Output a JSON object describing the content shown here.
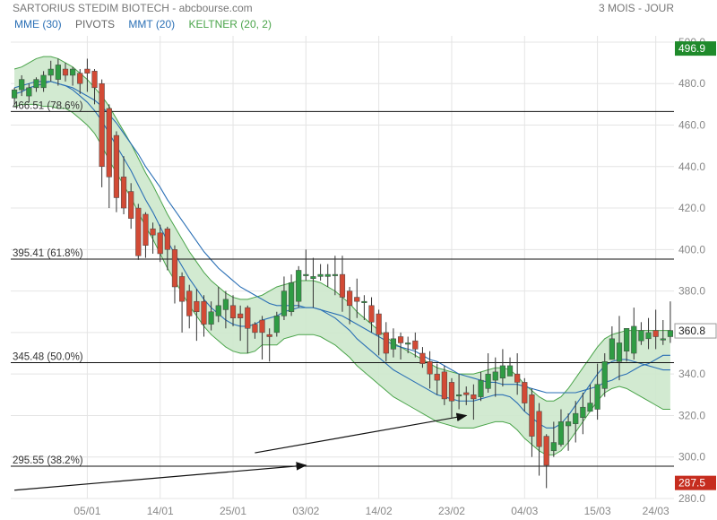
{
  "header": {
    "title": "SARTORIUS STEDIM BIOTECH - abcbourse.com",
    "period": "3 MOIS - JOUR"
  },
  "legend": [
    {
      "label": "MME (30)",
      "color": "#2a6fb5"
    },
    {
      "label": "PIVOTS",
      "color": "#666666"
    },
    {
      "label": "MMT (20)",
      "color": "#2a6fb5"
    },
    {
      "label": "KELTNER (20, 2)",
      "color": "#4aa44a"
    }
  ],
  "chart_data": {
    "type": "candlestick",
    "ylim": [
      280,
      503
    ],
    "y_ticks": [
      280,
      300,
      320,
      340,
      360,
      380,
      400,
      420,
      440,
      460,
      480,
      500
    ],
    "y_tick_labels": [
      "280.0",
      "300.0",
      "320.0",
      "340.0",
      "360.0",
      "380.0",
      "400.0",
      "420.0",
      "440.0",
      "460.0",
      "480.0",
      "500.0"
    ],
    "x_ticks": [
      {
        "index": 10,
        "label": "05/01"
      },
      {
        "index": 20,
        "label": "14/01"
      },
      {
        "index": 30,
        "label": "25/01"
      },
      {
        "index": 40,
        "label": "03/02"
      },
      {
        "index": 50,
        "label": "14/02"
      },
      {
        "index": 60,
        "label": "23/02"
      },
      {
        "index": 70,
        "label": "04/03"
      },
      {
        "index": 80,
        "label": "15/03"
      },
      {
        "index": 88,
        "label": "24/03"
      }
    ],
    "candles": [
      [
        473,
        477,
        470,
        478
      ],
      [
        477,
        482,
        474,
        484
      ],
      [
        474,
        478,
        471,
        480
      ],
      [
        478,
        482,
        476,
        483
      ],
      [
        478,
        484,
        476,
        486
      ],
      [
        484,
        487,
        481,
        491
      ],
      [
        482,
        489,
        479,
        492
      ],
      [
        487,
        484,
        481,
        490
      ],
      [
        484,
        487,
        479,
        488
      ],
      [
        485,
        480,
        475,
        487
      ],
      [
        487,
        485,
        476,
        492
      ],
      [
        486,
        478,
        470,
        487
      ],
      [
        480,
        440,
        430,
        482
      ],
      [
        468,
        435,
        420,
        470
      ],
      [
        455,
        425,
        418,
        457
      ],
      [
        435,
        420,
        417,
        445
      ],
      [
        428,
        415,
        410,
        432
      ],
      [
        420,
        397,
        395,
        422
      ],
      [
        417,
        402,
        396,
        418
      ],
      [
        410,
        407,
        398,
        413
      ],
      [
        408,
        398,
        394,
        412
      ],
      [
        410,
        400,
        390,
        411
      ],
      [
        400,
        382,
        374,
        402
      ],
      [
        387,
        375,
        360,
        389
      ],
      [
        380,
        368,
        362,
        383
      ],
      [
        375,
        370,
        356,
        381
      ],
      [
        375,
        364,
        358,
        378
      ],
      [
        364,
        370,
        361,
        375
      ],
      [
        368,
        373,
        365,
        382
      ],
      [
        371,
        376,
        362,
        380
      ],
      [
        373,
        367,
        363,
        378
      ],
      [
        369,
        367,
        356,
        373
      ],
      [
        372,
        362,
        350,
        373
      ],
      [
        364,
        360,
        357,
        365
      ],
      [
        366,
        360,
        347,
        368
      ],
      [
        359,
        358,
        346,
        362
      ],
      [
        360,
        368,
        358,
        370
      ],
      [
        368,
        380,
        366,
        387
      ],
      [
        370,
        384,
        368,
        388
      ],
      [
        375,
        390,
        372,
        392
      ],
      [
        388,
        388,
        385,
        400
      ],
      [
        386,
        387,
        372,
        396
      ],
      [
        387,
        388,
        385,
        393
      ],
      [
        387,
        388,
        382,
        393
      ],
      [
        388,
        388,
        378,
        397
      ],
      [
        388,
        377,
        370,
        397
      ],
      [
        380,
        373,
        364,
        382
      ],
      [
        377,
        375,
        367,
        386
      ],
      [
        375,
        375,
        366,
        378
      ],
      [
        373,
        365,
        360,
        377
      ],
      [
        369,
        359,
        349,
        371
      ],
      [
        360,
        350,
        346,
        365
      ],
      [
        352,
        357,
        348,
        362
      ],
      [
        358,
        355,
        347,
        360
      ],
      [
        355,
        355,
        350,
        358
      ],
      [
        356,
        352,
        348,
        360
      ],
      [
        350,
        345,
        343,
        353
      ],
      [
        346,
        340,
        333,
        351
      ],
      [
        340,
        337,
        330,
        345
      ],
      [
        341,
        328,
        325,
        344
      ],
      [
        336,
        327,
        319,
        338
      ],
      [
        330,
        330,
        323,
        340
      ],
      [
        331,
        330,
        325,
        334
      ],
      [
        330,
        328,
        318,
        335
      ],
      [
        329,
        337,
        327,
        341
      ],
      [
        333,
        340,
        331,
        350
      ],
      [
        337,
        341,
        329,
        348
      ],
      [
        338,
        344,
        334,
        352
      ],
      [
        339,
        344,
        340,
        348
      ],
      [
        340,
        336,
        330,
        350
      ],
      [
        336,
        326,
        322,
        338
      ],
      [
        330,
        310,
        300,
        333
      ],
      [
        322,
        305,
        291,
        326
      ],
      [
        310,
        296,
        285,
        311
      ],
      [
        303,
        307,
        300,
        317
      ],
      [
        306,
        317,
        305,
        323
      ],
      [
        315,
        317,
        303,
        321
      ],
      [
        316,
        321,
        307,
        327
      ],
      [
        319,
        324,
        311,
        331
      ],
      [
        322,
        326,
        322,
        335
      ],
      [
        323,
        335,
        318,
        345
      ],
      [
        333,
        346,
        329,
        350
      ],
      [
        347,
        357,
        347,
        363
      ],
      [
        346,
        355,
        337,
        368
      ],
      [
        351,
        362,
        346,
        362
      ],
      [
        350,
        363,
        347,
        372
      ],
      [
        356,
        361,
        354,
        365
      ],
      [
        357,
        360,
        352,
        367
      ],
      [
        361,
        358,
        352,
        371
      ],
      [
        357,
        357,
        354,
        366
      ],
      [
        358,
        361,
        355,
        375
      ]
    ],
    "series": [
      {
        "name": "MME (30)",
        "values": [
          475,
          476,
          478,
          479,
          480,
          481,
          480,
          479,
          478,
          476,
          474,
          472,
          469,
          465,
          461,
          456,
          451,
          446,
          440,
          435,
          430,
          424,
          419,
          414,
          409,
          404,
          399,
          395,
          391,
          388,
          385,
          382,
          380,
          378,
          376,
          374,
          373,
          373,
          373,
          373,
          372,
          372,
          371,
          370,
          369,
          368,
          366,
          364,
          362,
          360,
          358,
          356,
          354,
          353,
          352,
          351,
          349,
          347,
          346,
          344,
          342,
          340,
          339,
          338,
          337,
          336,
          336,
          335,
          335,
          335,
          334,
          333,
          332,
          331,
          331,
          331,
          331,
          331,
          332,
          333,
          334,
          336,
          337,
          339,
          340,
          342,
          344,
          345,
          347,
          349,
          349
        ]
      },
      {
        "name": "MMT (20)",
        "values": [
          478,
          479,
          480,
          481,
          481,
          481,
          480,
          479,
          477,
          474,
          471,
          467,
          462,
          456,
          450,
          444,
          438,
          431,
          424,
          418,
          411,
          404,
          398,
          392,
          386,
          381,
          376,
          372,
          369,
          366,
          364,
          363,
          363,
          364,
          366,
          367,
          368,
          370,
          371,
          372,
          372,
          372,
          371,
          369,
          367,
          364,
          361,
          357,
          354,
          351,
          348,
          345,
          342,
          340,
          338,
          336,
          334,
          332,
          330,
          329,
          328,
          327,
          327,
          327,
          328,
          329,
          330,
          330,
          329,
          326,
          322,
          319,
          316,
          314,
          314,
          316,
          320,
          325,
          330,
          335,
          340,
          344,
          346,
          347,
          347,
          346,
          345,
          344,
          343,
          342,
          342
        ]
      }
    ],
    "keltner_upper": [
      487,
      488,
      490,
      492,
      493,
      493,
      492,
      490,
      488,
      485,
      482,
      478,
      474,
      469,
      463,
      457,
      451,
      444,
      437,
      431,
      424,
      417,
      411,
      405,
      399,
      394,
      389,
      385,
      382,
      379,
      377,
      376,
      376,
      377,
      378,
      380,
      382,
      383,
      384,
      385,
      385,
      385,
      384,
      382,
      380,
      377,
      374,
      370,
      367,
      364,
      361,
      358,
      355,
      353,
      351,
      349,
      347,
      345,
      343,
      342,
      341,
      340,
      340,
      340,
      341,
      342,
      343,
      343,
      342,
      339,
      335,
      332,
      329,
      327,
      327,
      329,
      333,
      338,
      343,
      348,
      353,
      357,
      359,
      360,
      361,
      361,
      361,
      361,
      361,
      361,
      361
    ]
  },
  "pivot_levels": [
    {
      "value": 466.51,
      "label": "466.51  (78.6%)"
    },
    {
      "value": 395.41,
      "label": "395.41  (61.8%)"
    },
    {
      "value": 345.48,
      "label": "345.48  (50.0%)"
    },
    {
      "value": 295.55,
      "label": "295.55  (38.2%)"
    }
  ],
  "price_tags": [
    {
      "value": 496.9,
      "label": "496.9",
      "color": "#1f8a2b"
    },
    {
      "value": 360.8,
      "label": "360.8",
      "color": "#ffffff"
    },
    {
      "value": 287.5,
      "label": "287.5",
      "color": "#c62d1f"
    }
  ],
  "trend_arrows": [
    {
      "from_index": 33,
      "from_value": 302,
      "to_index": 62,
      "to_value": 320
    },
    {
      "from_index": 0,
      "from_value": 284,
      "to_index": 40,
      "to_value": 296
    }
  ],
  "colors": {
    "up": "#2f9c44",
    "down": "#d24a35",
    "band_fill": "#cde8cc",
    "band_line": "#4aa44a",
    "ma": "#2a6fb5",
    "grid": "#e4e4e4"
  }
}
